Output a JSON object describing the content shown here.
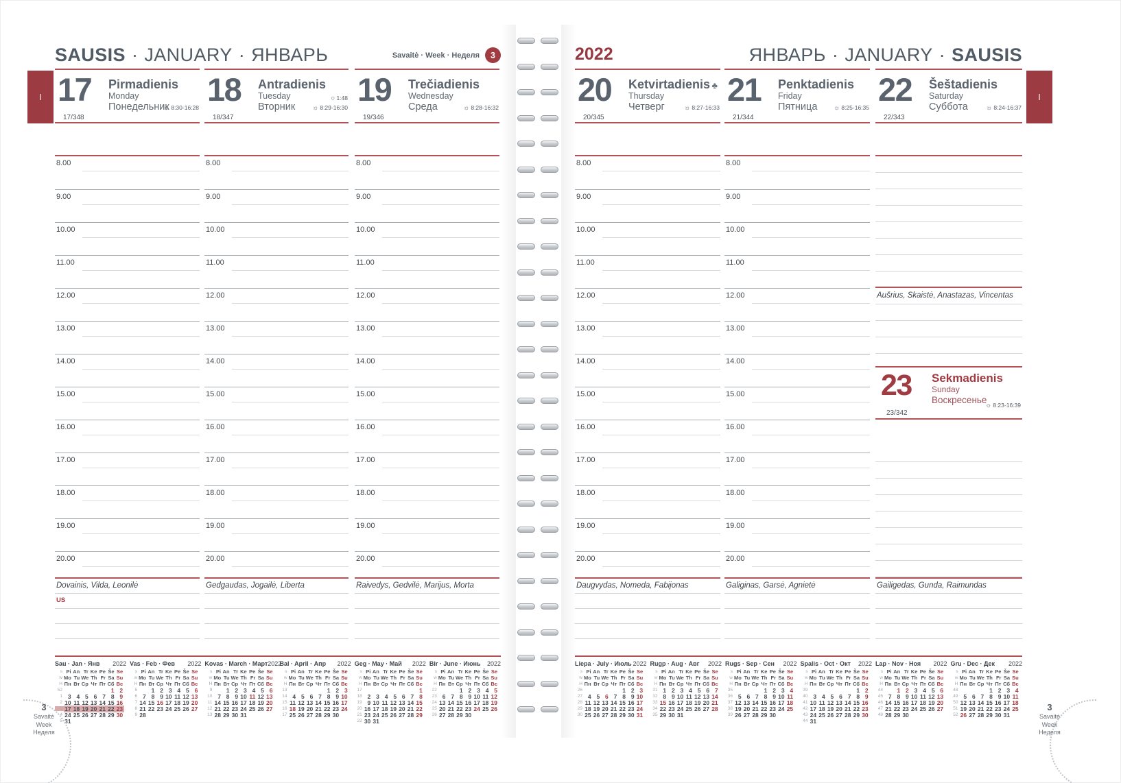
{
  "palette": {
    "accent_red": "#a6434a",
    "ink_gray": "#59626b",
    "highlight_pink": "#d9abad"
  },
  "tabs": {
    "left": "I",
    "right": "I"
  },
  "header_left": {
    "title_lt": "SAUSIS",
    "title_en": "JANUARY",
    "title_ru": "ЯНВАРЬ",
    "week_label": "Savaitė · Week · Неделя",
    "week_number": "3"
  },
  "header_right": {
    "year": "2022",
    "title_ru": "ЯНВАРЬ",
    "title_en": "JANUARY",
    "title_lt": "SAUSIS"
  },
  "icons": {
    "sun": "☼",
    "moon": "○",
    "thursday_symbol": "♣"
  },
  "hours": [
    "8.00",
    "9.00",
    "10.00",
    "11.00",
    "12.00",
    "13.00",
    "14.00",
    "15.00",
    "16.00",
    "17.00",
    "18.00",
    "19.00",
    "20.00"
  ],
  "days": {
    "mon": {
      "num": "17",
      "lt": "Pirmadienis",
      "en": "Monday",
      "ru": "Понедельник",
      "doy": "17/348",
      "sun": "8:30-16:28",
      "names": "Dovainis, Vilda, Leonilė",
      "note": "US"
    },
    "tue": {
      "num": "18",
      "lt": "Antradienis",
      "en": "Tuesday",
      "ru": "Вторник",
      "doy": "18/347",
      "moon": "1:48",
      "sun": "8:29-16:30",
      "names": "Gedgaudas, Jogailė, Liberta"
    },
    "wed": {
      "num": "19",
      "lt": "Trečiadienis",
      "en": "Wednesday",
      "ru": "Среда",
      "doy": "19/346",
      "sun": "8:28-16:32",
      "names": "Raivedys, Gedvilė, Marijus, Morta"
    },
    "thu": {
      "num": "20",
      "lt": "Ketvirtadienis",
      "en": "Thursday",
      "ru": "Четверг",
      "doy": "20/345",
      "sun": "8:27-16:33",
      "names": "Daugvydas, Nomeda, Fabijonas"
    },
    "fri": {
      "num": "21",
      "lt": "Penktadienis",
      "en": "Friday",
      "ru": "Пятница",
      "doy": "21/344",
      "sun": "8:25-16:35",
      "names": "Galiginas, Garsė, Agnietė"
    },
    "sat": {
      "num": "22",
      "lt": "Šeštadienis",
      "en": "Saturday",
      "ru": "Суббота",
      "doy": "22/343",
      "sun": "8:24-16:37",
      "names": "Aušrius, Skaistė, Anastazas, Vincentas"
    },
    "sun": {
      "num": "23",
      "lt": "Sekmadienis",
      "en": "Sunday",
      "ru": "Воскресенье",
      "doy": "23/342",
      "sun": "8:23-16:39",
      "names": "Gailigedas, Gunda, Raimundas"
    }
  },
  "corner": {
    "number": "3",
    "labels": [
      "Savaitė",
      "Week",
      "Неделя"
    ]
  },
  "minical": {
    "dow": [
      [
        "s",
        "Pi",
        "An",
        "Tr",
        "Ke",
        "Pe",
        "Še",
        "Se"
      ],
      [
        "w",
        "Mo",
        "Tu",
        "We",
        "Th",
        "Fr",
        "Sa",
        "Su"
      ],
      [
        "Н",
        "Пн",
        "Вт",
        "Ср",
        "Чт",
        "Пт",
        "Сб",
        "Вс"
      ]
    ],
    "left": [
      {
        "t": "Sau · Jan · Янв",
        "y": "2022",
        "hl": "3",
        "red": [
          1,
          2,
          9,
          16,
          23,
          30
        ],
        "w": [
          [
            "52",
            "",
            "",
            "",
            "",
            "",
            "1",
            "2"
          ],
          [
            "1",
            "3",
            "4",
            "5",
            "6",
            "7",
            "8",
            "9"
          ],
          [
            "2",
            "10",
            "11",
            "12",
            "13",
            "14",
            "15",
            "16"
          ],
          [
            "3",
            "17",
            "18",
            "19",
            "20",
            "21",
            "22",
            "23"
          ],
          [
            "4",
            "24",
            "25",
            "26",
            "27",
            "28",
            "29",
            "30"
          ],
          [
            "5",
            "31",
            "",
            "",
            "",
            "",
            "",
            ""
          ]
        ]
      },
      {
        "t": "Vas · Feb · Фев",
        "y": "2022",
        "red": [
          6,
          13,
          16,
          20,
          27
        ],
        "w": [
          [
            "5",
            "",
            "1",
            "2",
            "3",
            "4",
            "5",
            "6"
          ],
          [
            "6",
            "7",
            "8",
            "9",
            "10",
            "11",
            "12",
            "13"
          ],
          [
            "7",
            "14",
            "15",
            "16",
            "17",
            "18",
            "19",
            "20"
          ],
          [
            "8",
            "21",
            "22",
            "23",
            "24",
            "25",
            "26",
            "27"
          ],
          [
            "9",
            "28",
            "",
            "",
            "",
            "",
            "",
            ""
          ]
        ]
      },
      {
        "t": "Kovas · March · Март",
        "y": "2022",
        "red": [
          6,
          11,
          13,
          20,
          27
        ],
        "w": [
          [
            "9",
            "",
            "1",
            "2",
            "3",
            "4",
            "5",
            "6"
          ],
          [
            "10",
            "7",
            "8",
            "9",
            "10",
            "11",
            "12",
            "13"
          ],
          [
            "11",
            "14",
            "15",
            "16",
            "17",
            "18",
            "19",
            "20"
          ],
          [
            "12",
            "21",
            "22",
            "23",
            "24",
            "25",
            "26",
            "27"
          ],
          [
            "13",
            "28",
            "29",
            "30",
            "31",
            "",
            "",
            ""
          ]
        ]
      },
      {
        "t": "Bal · April · Апр",
        "y": "2022",
        "red": [
          3,
          10,
          17,
          18,
          24
        ],
        "w": [
          [
            "13",
            "",
            "",
            "",
            "",
            "1",
            "2",
            "3"
          ],
          [
            "14",
            "4",
            "5",
            "6",
            "7",
            "8",
            "9",
            "10"
          ],
          [
            "15",
            "11",
            "12",
            "13",
            "14",
            "15",
            "16",
            "17"
          ],
          [
            "16",
            "18",
            "19",
            "20",
            "21",
            "22",
            "23",
            "24"
          ],
          [
            "17",
            "25",
            "26",
            "27",
            "28",
            "29",
            "30",
            ""
          ]
        ]
      },
      {
        "t": "Geg · May · Май",
        "y": "2022",
        "red": [
          1,
          8,
          15,
          22,
          29
        ],
        "w": [
          [
            "17",
            "",
            "",
            "",
            "",
            "",
            "",
            "1"
          ],
          [
            "18",
            "2",
            "3",
            "4",
            "5",
            "6",
            "7",
            "8"
          ],
          [
            "19",
            "9",
            "10",
            "11",
            "12",
            "13",
            "14",
            "15"
          ],
          [
            "20",
            "16",
            "17",
            "18",
            "19",
            "20",
            "21",
            "22"
          ],
          [
            "21",
            "23",
            "24",
            "25",
            "26",
            "27",
            "28",
            "29"
          ],
          [
            "22",
            "30",
            "31",
            "",
            "",
            "",
            "",
            ""
          ]
        ]
      },
      {
        "t": "Bir · June · Июнь",
        "y": "2022",
        "red": [
          5,
          12,
          19,
          24,
          26
        ],
        "w": [
          [
            "22",
            "",
            "",
            "1",
            "2",
            "3",
            "4",
            "5"
          ],
          [
            "23",
            "6",
            "7",
            "8",
            "9",
            "10",
            "11",
            "12"
          ],
          [
            "24",
            "13",
            "14",
            "15",
            "16",
            "17",
            "18",
            "19"
          ],
          [
            "25",
            "20",
            "21",
            "22",
            "23",
            "24",
            "25",
            "26"
          ],
          [
            "26",
            "27",
            "28",
            "29",
            "30",
            "",
            "",
            ""
          ]
        ]
      }
    ],
    "right": [
      {
        "t": "Liepa · July · Июль",
        "y": "2022",
        "red": [
          3,
          6,
          10,
          17,
          24,
          31
        ],
        "w": [
          [
            "26",
            "",
            "",
            "",
            "",
            "1",
            "2",
            "3"
          ],
          [
            "27",
            "4",
            "5",
            "6",
            "7",
            "8",
            "9",
            "10"
          ],
          [
            "28",
            "11",
            "12",
            "13",
            "14",
            "15",
            "16",
            "17"
          ],
          [
            "29",
            "18",
            "19",
            "20",
            "21",
            "22",
            "23",
            "24"
          ],
          [
            "30",
            "25",
            "26",
            "27",
            "28",
            "29",
            "30",
            "31"
          ]
        ]
      },
      {
        "t": "Rugp · Aug · Авг",
        "y": "2022",
        "red": [
          7,
          14,
          15,
          21,
          28
        ],
        "w": [
          [
            "31",
            "1",
            "2",
            "3",
            "4",
            "5",
            "6",
            "7"
          ],
          [
            "32",
            "8",
            "9",
            "10",
            "11",
            "12",
            "13",
            "14"
          ],
          [
            "33",
            "15",
            "16",
            "17",
            "18",
            "19",
            "20",
            "21"
          ],
          [
            "34",
            "22",
            "23",
            "24",
            "25",
            "26",
            "27",
            "28"
          ],
          [
            "35",
            "29",
            "30",
            "31",
            "",
            "",
            "",
            ""
          ]
        ]
      },
      {
        "t": "Rugs · Sep · Сен",
        "y": "2022",
        "red": [
          4,
          11,
          18,
          25
        ],
        "w": [
          [
            "35",
            "",
            "",
            "",
            "1",
            "2",
            "3",
            "4"
          ],
          [
            "36",
            "5",
            "6",
            "7",
            "8",
            "9",
            "10",
            "11"
          ],
          [
            "37",
            "12",
            "13",
            "14",
            "15",
            "16",
            "17",
            "18"
          ],
          [
            "38",
            "19",
            "20",
            "21",
            "22",
            "23",
            "24",
            "25"
          ],
          [
            "39",
            "26",
            "27",
            "28",
            "29",
            "30",
            "",
            ""
          ]
        ]
      },
      {
        "t": "Spalis · Oct · Окт",
        "y": "2022",
        "red": [
          2,
          9,
          16,
          23,
          30
        ],
        "w": [
          [
            "39",
            "",
            "",
            "",
            "",
            "",
            "1",
            "2"
          ],
          [
            "40",
            "3",
            "4",
            "5",
            "6",
            "7",
            "8",
            "9"
          ],
          [
            "41",
            "10",
            "11",
            "12",
            "13",
            "14",
            "15",
            "16"
          ],
          [
            "42",
            "17",
            "18",
            "19",
            "20",
            "21",
            "22",
            "23"
          ],
          [
            "43",
            "24",
            "25",
            "26",
            "27",
            "28",
            "29",
            "30"
          ],
          [
            "44",
            "31",
            "",
            "",
            "",
            "",
            "",
            ""
          ]
        ]
      },
      {
        "t": "Lap · Nov · Ноя",
        "y": "2022",
        "red": [
          1,
          2,
          6,
          13,
          20,
          27
        ],
        "w": [
          [
            "44",
            "",
            "1",
            "2",
            "3",
            "4",
            "5",
            "6"
          ],
          [
            "45",
            "7",
            "8",
            "9",
            "10",
            "11",
            "12",
            "13"
          ],
          [
            "46",
            "14",
            "15",
            "16",
            "17",
            "18",
            "19",
            "20"
          ],
          [
            "47",
            "21",
            "22",
            "23",
            "24",
            "25",
            "26",
            "27"
          ],
          [
            "48",
            "28",
            "29",
            "30",
            "",
            "",
            "",
            ""
          ]
        ]
      },
      {
        "t": "Gru · Dec · Дек",
        "y": "2022",
        "red": [
          4,
          11,
          18,
          25,
          26
        ],
        "w": [
          [
            "48",
            "",
            "",
            "",
            "1",
            "2",
            "3",
            "4"
          ],
          [
            "49",
            "5",
            "6",
            "7",
            "8",
            "9",
            "10",
            "11"
          ],
          [
            "50",
            "12",
            "13",
            "14",
            "15",
            "16",
            "17",
            "18"
          ],
          [
            "51",
            "19",
            "20",
            "21",
            "22",
            "23",
            "24",
            "25"
          ],
          [
            "52",
            "26",
            "27",
            "28",
            "29",
            "30",
            "31",
            ""
          ]
        ]
      }
    ]
  }
}
